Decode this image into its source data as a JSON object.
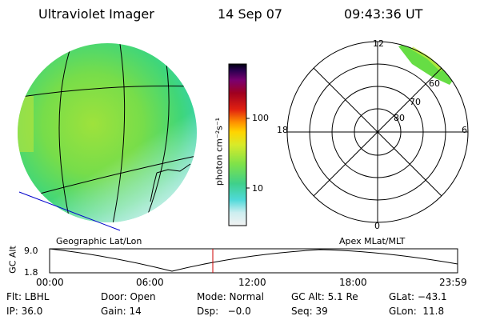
{
  "header": {
    "instrument": "Ultraviolet Imager",
    "date": "14 Sep 07",
    "time": "09:43:36 UT"
  },
  "colorbar": {
    "unit_label": "photon cm⁻²s⁻¹",
    "ticks": [
      "100",
      "10"
    ]
  },
  "polar_plot": {
    "mlt_labels": {
      "top": "12",
      "right": "6",
      "bottom": "0",
      "left": "18"
    },
    "lat_labels": [
      "60",
      "70",
      "80"
    ]
  },
  "panel_labels": {
    "left": "Geographic Lat/Lon",
    "right": "Apex MLat/MLT"
  },
  "altitude_plot": {
    "ylabel": "GC Alt",
    "yticks": [
      "9.0",
      "1.8"
    ],
    "xticks": [
      "00:00",
      "06:00",
      "12:00",
      "18:00",
      "23:59"
    ]
  },
  "footer": {
    "row1": {
      "filter": "Flt: LBHL",
      "door": "Door: Open",
      "mode": "Mode: Normal",
      "gc_alt": "GC Alt: 5.1 Re",
      "glat": "GLat: −43.1"
    },
    "row2": {
      "ip": "IP: 36.0",
      "gain": "Gain: 14",
      "dsp": "Dsp:   −0.0",
      "seq": "Seq: 39",
      "glon": "GLon:  11.8"
    }
  },
  "colors": {
    "time_marker": "#cc0000",
    "footprint_line": "#0000cc"
  }
}
